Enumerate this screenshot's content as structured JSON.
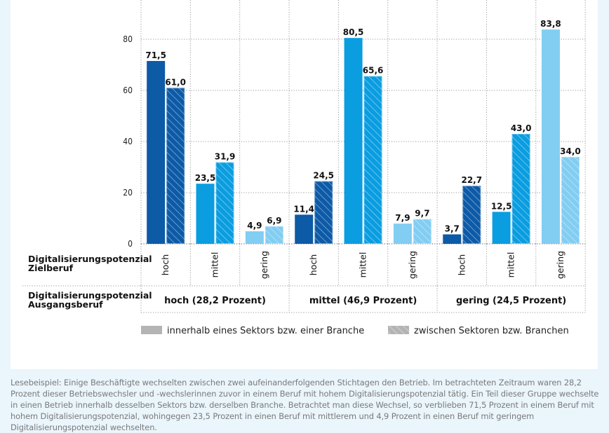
{
  "chart_data": {
    "type": "bar",
    "title": "",
    "ylabel": "",
    "ylim": [
      0,
      90
    ],
    "yticks": [
      0,
      20,
      40,
      60,
      80
    ],
    "grid": true,
    "row_labels": {
      "target": [
        "Digitalisierungspotenzial",
        "Zielberuf"
      ],
      "origin": [
        "Digitalisierungspotenzial",
        "Ausgangsberuf"
      ]
    },
    "groups": [
      {
        "label": "hoch (28,2 Prozent)",
        "categories": [
          "hoch",
          "mittel",
          "gering"
        ]
      },
      {
        "label": "mittel (46,9 Prozent)",
        "categories": [
          "hoch",
          "mittel",
          "gering"
        ]
      },
      {
        "label": "gering (24,5 Prozent)",
        "categories": [
          "hoch",
          "mittel",
          "gering"
        ]
      }
    ],
    "series": [
      {
        "name": "innerhalb eines Sektors bzw. einer Branche",
        "pattern": "solid",
        "values": [
          71.5,
          23.5,
          4.9,
          11.4,
          80.5,
          7.9,
          3.7,
          12.5,
          83.8
        ],
        "labels": [
          "71,5",
          "23,5",
          "4,9",
          "11,4",
          "80,5",
          "7,9",
          "3,7",
          "12,5",
          "83,8"
        ]
      },
      {
        "name": "zwischen Sektoren bzw. Branchen",
        "pattern": "hatched",
        "values": [
          61.0,
          31.9,
          6.9,
          24.5,
          65.6,
          9.7,
          22.7,
          43.0,
          34.0
        ],
        "labels": [
          "61,0",
          "31,9",
          "6,9",
          "24,5",
          "65,6",
          "9,7",
          "22,7",
          "43,0",
          "34,0"
        ]
      }
    ],
    "category_colors": {
      "hoch": "#0d5aa7",
      "mittel": "#0a9de0",
      "gering": "#82cdf2"
    },
    "legend": {
      "position": "bottom",
      "swatch_color": "#b4b4b4"
    }
  },
  "note": "Lesebeispiel: Einige Beschäftigte wechselten zwischen zwei aufeinanderfolgenden Stichtagen den Betrieb. Im betrachteten Zeitraum waren 28,2 Prozent dieser Betriebswechsler und -wechslerinnen zuvor in einem Beruf mit hohem Digitalisierungspotenzial tätig. Ein Teil dieser Gruppe wechselte in einen Betrieb innerhalb desselben Sektors bzw. derselben Branche. Betrachtet man diese Wechsel, so verblieben 71,5 Prozent in einem Beruf mit hohem Digitalisierungspotenzial, wohingegen 23,5 Prozent in einen Beruf mit mittlerem und 4,9 Prozent in einen Beruf mit geringem Digitalisierungspotenzial wechselten."
}
